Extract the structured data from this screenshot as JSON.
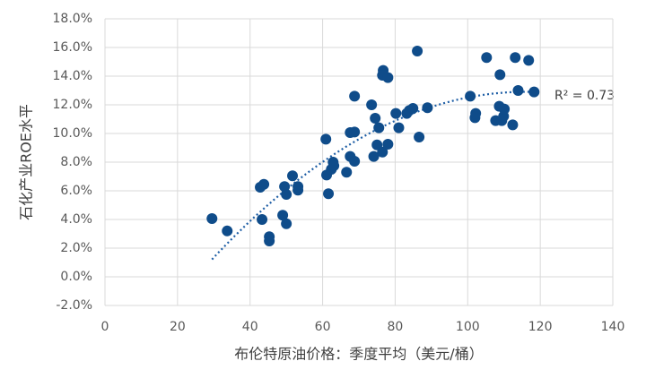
{
  "chart_data": {
    "type": "scatter",
    "x_label": "布伦特原油价格：季度平均（美元/桶）",
    "y_label": "石化产业ROE水平",
    "annotation": "R² = 0.73",
    "color": "#0f4c8a",
    "trendline_color": "#1f5fa6",
    "grid": true,
    "xlim": [
      0,
      140
    ],
    "xticks": [
      0,
      20,
      40,
      60,
      80,
      100,
      120,
      140
    ],
    "ylim": [
      -2,
      18
    ],
    "yticks": [
      {
        "value": -2,
        "label": "-2.0%"
      },
      {
        "value": 0,
        "label": "0.0%"
      },
      {
        "value": 2,
        "label": "2.0%"
      },
      {
        "value": 4,
        "label": "4.0%"
      },
      {
        "value": 6,
        "label": "6.0%"
      },
      {
        "value": 8,
        "label": "8.0%"
      },
      {
        "value": 10,
        "label": "10.0%"
      },
      {
        "value": 12,
        "label": "12.0%"
      },
      {
        "value": 14,
        "label": "14.0%"
      },
      {
        "value": 16,
        "label": "16.0%"
      },
      {
        "value": 18,
        "label": "18.0%"
      }
    ],
    "x": [
      29.5,
      33.7,
      42.8,
      43.8,
      43.3,
      45.3,
      45.3,
      49,
      49.5,
      50,
      50,
      51.7,
      53.2,
      53.2,
      60.9,
      61.1,
      61.6,
      62.4,
      62.9,
      63.1,
      66.6,
      67.6,
      67.6,
      68.8,
      68.8,
      68.8,
      73.5,
      74.1,
      74.5,
      75,
      75.5,
      76.5,
      76.7,
      76.5,
      78,
      78,
      80.2,
      81,
      83.2,
      83.9,
      84.9,
      86.1,
      86.6,
      88.9,
      100.7,
      102,
      102.2,
      105.2,
      107.7,
      108.7,
      108.9,
      109.4,
      109.9,
      110.1,
      112.4,
      113.1,
      113.9,
      116.8,
      118.3
    ],
    "values": [
      4.06,
      3.2,
      6.25,
      6.45,
      4.0,
      2.8,
      2.5,
      4.3,
      6.3,
      5.75,
      3.7,
      7.05,
      6.05,
      6.3,
      9.6,
      7.1,
      5.8,
      7.5,
      8.0,
      7.75,
      7.3,
      10.06,
      8.4,
      10.1,
      8.06,
      12.6,
      12.0,
      8.4,
      11.06,
      9.2,
      10.4,
      8.7,
      14.4,
      14.06,
      13.9,
      9.25,
      11.4,
      10.4,
      11.4,
      11.6,
      11.75,
      15.75,
      9.75,
      11.8,
      12.6,
      11.1,
      11.4,
      15.3,
      10.9,
      11.9,
      14.1,
      10.9,
      11.2,
      11.7,
      10.6,
      15.3,
      13.0,
      15.1,
      12.9
    ]
  }
}
